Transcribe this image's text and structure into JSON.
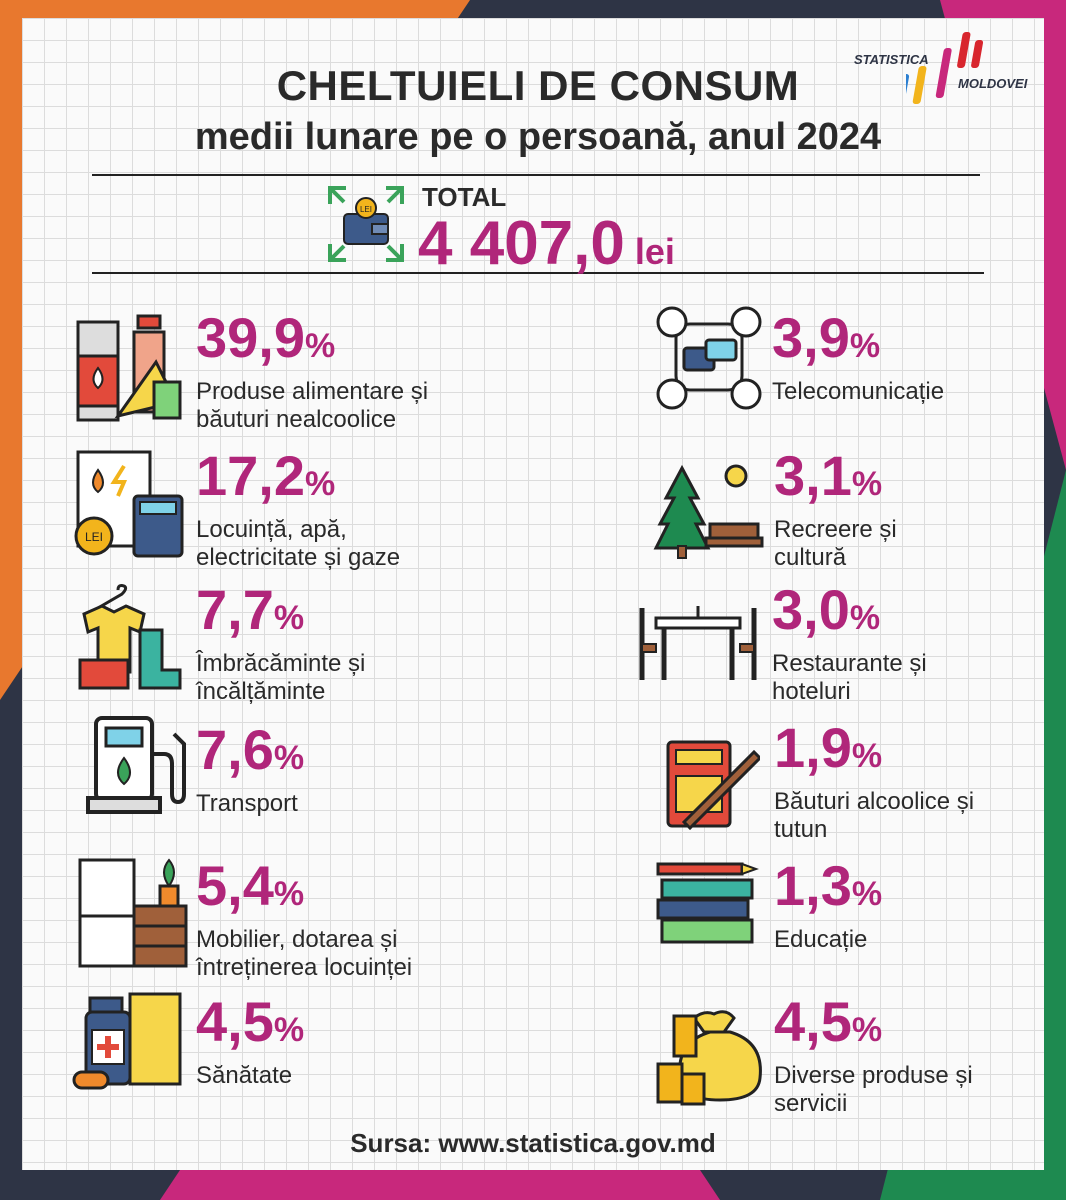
{
  "header": {
    "title": "CHELTUIELI DE CONSUM",
    "subtitle": "medii lunare pe o persoană, anul 2024"
  },
  "logo": {
    "line1": "STATISTICA",
    "line2": "MOLDOVEI"
  },
  "total": {
    "label": "TOTAL",
    "value": "4 407,0",
    "unit": "lei",
    "icon": "wallet-lei-icon"
  },
  "items": [
    {
      "value": "39,9",
      "sign": "%",
      "label_lines": [
        "Produse alimentare și",
        "băuturi nealcoolice"
      ],
      "icon": "food-drinks-icon"
    },
    {
      "value": "17,2",
      "sign": "%",
      "label_lines": [
        "Locuință, apă,",
        "electricitate și gaze"
      ],
      "icon": "utilities-icon"
    },
    {
      "value": "7,7",
      "sign": "%",
      "label_lines": [
        "Îmbrăcăminte și",
        "încălțăminte"
      ],
      "icon": "clothing-icon"
    },
    {
      "value": "7,6",
      "sign": "%",
      "label_lines": [
        "Transport"
      ],
      "icon": "fuel-pump-icon"
    },
    {
      "value": "5,4",
      "sign": "%",
      "label_lines": [
        "Mobilier, dotarea și",
        "întreținerea locuinței"
      ],
      "icon": "furniture-icon"
    },
    {
      "value": "4,5",
      "sign": "%",
      "label_lines": [
        "Sănătate"
      ],
      "icon": "medicine-icon"
    },
    {
      "value": "3,9",
      "sign": "%",
      "label_lines": [
        "Telecomunicație"
      ],
      "icon": "telecom-icon"
    },
    {
      "value": "3,1",
      "sign": "%",
      "label_lines": [
        "Recreere și",
        "cultură"
      ],
      "icon": "recreation-icon"
    },
    {
      "value": "3,0",
      "sign": "%",
      "label_lines": [
        "Restaurante și",
        "hoteluri"
      ],
      "icon": "restaurant-icon"
    },
    {
      "value": "1,9",
      "sign": "%",
      "label_lines": [
        "Băuturi alcoolice și",
        "tutun"
      ],
      "icon": "tobacco-icon"
    },
    {
      "value": "1,3",
      "sign": "%",
      "label_lines": [
        "Educație"
      ],
      "icon": "books-icon"
    },
    {
      "value": "4,5",
      "sign": "%",
      "label_lines": [
        "Diverse produse și",
        "servicii"
      ],
      "icon": "money-bag-icon"
    }
  ],
  "footer": {
    "source": "Sursa: www.statistica.gov.md"
  },
  "colors": {
    "accent": "#b0267a",
    "orange": "#e8782e",
    "green": "#1e8a50",
    "navy": "#2e3445",
    "magenta": "#c8287c"
  }
}
